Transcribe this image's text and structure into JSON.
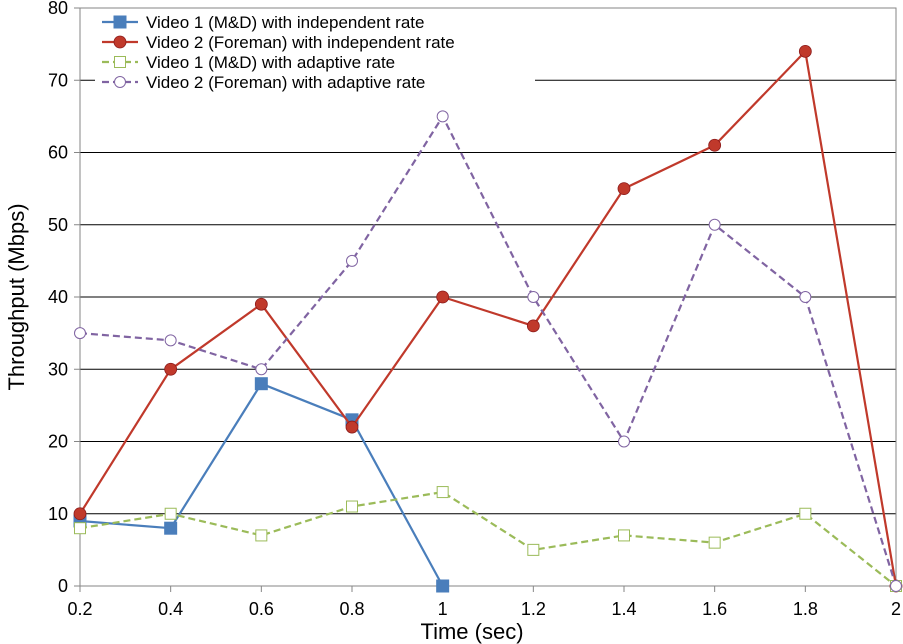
{
  "chart_data": {
    "type": "line",
    "title": "",
    "xlabel": "Time (sec)",
    "ylabel": "Throughput (Mbps)",
    "x": [
      0.2,
      0.4,
      0.6,
      0.8,
      1,
      1.2,
      1.4,
      1.6,
      1.8,
      2
    ],
    "x_tick_labels": [
      "0.2",
      "0.4",
      "0.6",
      "0.8",
      "1",
      "1.2",
      "1.4",
      "1.6",
      "1.8",
      "2"
    ],
    "xlim": [
      0.2,
      2
    ],
    "ylim": [
      0,
      80
    ],
    "y_ticks": [
      0,
      10,
      20,
      30,
      40,
      50,
      60,
      70,
      80
    ],
    "y_tick_labels": [
      "0",
      "10",
      "20",
      "30",
      "40",
      "50",
      "60",
      "70",
      "80"
    ],
    "grid": "horizontal",
    "legend_position": "top-left",
    "series": [
      {
        "name": "Video 1 (M&D) with independent rate",
        "color": "#4a7ebb",
        "dash": "solid",
        "marker": "filled-square",
        "x": [
          0.2,
          0.4,
          0.6,
          0.8,
          1
        ],
        "values": [
          9,
          8,
          28,
          23,
          0
        ]
      },
      {
        "name": "Video 2 (Foreman) with independent rate",
        "color": "#c0392b",
        "dash": "solid",
        "marker": "filled-circle",
        "x": [
          0.2,
          0.4,
          0.6,
          0.8,
          1,
          1.2,
          1.4,
          1.6,
          1.8,
          2
        ],
        "values": [
          10,
          30,
          39,
          22,
          40,
          36,
          55,
          61,
          74,
          0
        ]
      },
      {
        "name": "Video 1 (M&D) with adaptive rate",
        "color": "#9bbb59",
        "dash": "dashed",
        "marker": "open-square",
        "x": [
          0.2,
          0.4,
          0.6,
          0.8,
          1,
          1.2,
          1.4,
          1.6,
          1.8,
          2
        ],
        "values": [
          8,
          10,
          7,
          11,
          13,
          5,
          7,
          6,
          10,
          0
        ]
      },
      {
        "name": "Video 2 (Foreman) with adaptive rate",
        "color": "#8064a2",
        "dash": "dashed",
        "marker": "open-circle",
        "x": [
          0.2,
          0.4,
          0.6,
          0.8,
          1,
          1.2,
          1.4,
          1.6,
          1.8,
          2
        ],
        "values": [
          35,
          34,
          30,
          45,
          65,
          40,
          20,
          50,
          40,
          0
        ]
      }
    ]
  }
}
